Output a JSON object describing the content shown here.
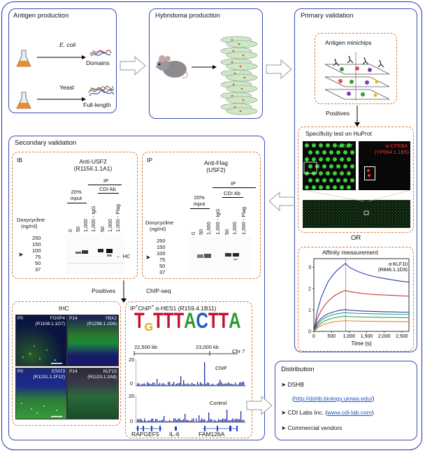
{
  "antigen": {
    "title": "Antigen production",
    "ecoli": "E. coli",
    "domains": "Domains",
    "yeast": "Yeast",
    "full_length": "Full-length"
  },
  "hybridoma": {
    "title": "Hybridoma production"
  },
  "primary": {
    "title": "Primary validation",
    "minichips": "Antigen minichips",
    "positives": "Positives",
    "specificity_title": "Specificity test on HuProt",
    "gst": "α-GST",
    "cpeb4_line1": "α-CPEB4",
    "cpeb4_line2": "(YP654.1.1B5)",
    "or": "OR"
  },
  "affinity": {
    "title": "Affinity measurement",
    "antibody_line1": "α-KLF10",
    "antibody_line2": "(R846.1.1D3)",
    "xlabel": "Time (s)"
  },
  "secondary": {
    "title": "Secondary validation",
    "ib": {
      "tag": "IB",
      "antibody": "Anti-USF2",
      "clone": "(R1156.1.1A1)",
      "ip": "IP",
      "input_line1": "20%",
      "input_line2": "input",
      "doxy_line1": "Doxycycline",
      "doxy_line2": "(ng/ml)",
      "lanes": [
        "0",
        "50",
        "1,000",
        "1,000 - IgG",
        "50",
        "1,000",
        "1,000 - Flag"
      ],
      "cdi": "CDI Ab",
      "markers": [
        "250",
        "150",
        "100",
        "75",
        "50",
        "37"
      ],
      "hc": "HC"
    },
    "ip": {
      "tag": "IP",
      "antibody": "Anti-Flag",
      "clone": "(USF2)",
      "ip": "IP",
      "input_line1": "20%",
      "input_line2": "input",
      "doxy_line1": "Doxycycline",
      "doxy_line2": "(ng/ml)",
      "lanes": [
        "0",
        "50",
        "1,000",
        "1,000 - IgG",
        "50",
        "1,000",
        "1,000 - Flag"
      ],
      "cdi": "CDI Ab",
      "markers": [
        "250",
        "150",
        "100",
        "75",
        "50",
        "37"
      ]
    },
    "positives": "Positives",
    "chipseq": "ChIP-seq"
  },
  "ihc": {
    "title": "IHC",
    "panels": [
      {
        "age": "P0",
        "gene": "FOXP4",
        "clone": "(R1108.1.1G7)"
      },
      {
        "age": "P14",
        "gene": "YBX2",
        "clone": "(R1298.1.1D6)"
      },
      {
        "age": "P0",
        "gene": "STAT3",
        "clone": "(R1231.1.2F12)"
      },
      {
        "age": "P14",
        "gene": "KLF15",
        "clone": "(R1123.1.2A8)"
      }
    ]
  },
  "chip": {
    "title": "IP",
    "sup1": "+",
    "title_mid": "ChIP",
    "sup2": "+",
    "title_end": " α-HES1 (R159.4.1B11)",
    "motif": [
      "T",
      "G",
      "T",
      "T",
      "T",
      "A",
      "C",
      "T",
      "T",
      "A"
    ],
    "coord_start": "22,500 kb",
    "coord_end": "23,000 kb",
    "chr": "Chr 7",
    "ymax1": "20",
    "ymin1": "0",
    "label1": "ChIP",
    "ymax2": "20",
    "ymin2": "0",
    "label2": "Control",
    "genes": [
      "RAPGEF5",
      "IL-6",
      "FAM126A"
    ]
  },
  "distribution": {
    "title": "Distribution",
    "item1": "DSHB",
    "item1_link": "http://dshb.biology.uiowa.edu/",
    "item2_prefix": "CDI Labs Inc. (",
    "item2_link": "www.cdi-lab.com",
    "item2_suffix": ")",
    "item3": "Commercial vendors"
  },
  "chart_data": {
    "type": "line",
    "title": "Affinity measurement",
    "xlabel": "Time (s)",
    "ylabel": "",
    "xlim": [
      0,
      2700
    ],
    "ylim": [
      0,
      3.4
    ],
    "xticks": [
      0,
      500,
      1000,
      1500,
      2000,
      2500
    ],
    "yticks": [
      0,
      1,
      2,
      3
    ],
    "series": [
      {
        "name": "blue",
        "color": "#2b3fb0",
        "x": [
          0,
          100,
          200,
          300,
          400,
          500,
          600,
          700,
          800,
          900,
          1000,
          1250,
          1500,
          1750,
          2000,
          2250,
          2500,
          2700
        ],
        "values": [
          0,
          0.95,
          1.55,
          1.95,
          2.3,
          2.55,
          2.75,
          2.92,
          3.05,
          3.18,
          3.0,
          2.8,
          2.65,
          2.55,
          2.47,
          2.4,
          2.34,
          2.3
        ]
      },
      {
        "name": "red",
        "color": "#c0392b",
        "x": [
          0,
          100,
          200,
          300,
          400,
          500,
          600,
          700,
          800,
          900,
          1000,
          1250,
          1500,
          1750,
          2000,
          2250,
          2500,
          2700
        ],
        "values": [
          0,
          0.6,
          0.95,
          1.2,
          1.4,
          1.55,
          1.68,
          1.78,
          1.85,
          1.92,
          1.86,
          1.8,
          1.75,
          1.72,
          1.7,
          1.68,
          1.66,
          1.65
        ]
      },
      {
        "name": "dark-blue",
        "color": "#2c3e8c",
        "x": [
          0,
          100,
          200,
          300,
          400,
          500,
          600,
          700,
          800,
          900,
          1000,
          1250,
          1500,
          1750,
          2000,
          2250,
          2500,
          2700
        ],
        "values": [
          0,
          0.4,
          0.6,
          0.73,
          0.82,
          0.88,
          0.93,
          0.97,
          1.0,
          1.02,
          0.99,
          0.96,
          0.94,
          0.93,
          0.92,
          0.91,
          0.9,
          0.9
        ]
      },
      {
        "name": "teal",
        "color": "#20a0a0",
        "x": [
          0,
          100,
          200,
          300,
          400,
          500,
          600,
          700,
          800,
          900,
          1000,
          1250,
          1500,
          1750,
          2000,
          2250,
          2500,
          2700
        ],
        "values": [
          0,
          0.3,
          0.5,
          0.62,
          0.7,
          0.76,
          0.8,
          0.83,
          0.86,
          0.88,
          0.86,
          0.84,
          0.83,
          0.82,
          0.81,
          0.8,
          0.8,
          0.79
        ]
      },
      {
        "name": "green",
        "color": "#3aa041",
        "x": [
          0,
          100,
          200,
          300,
          400,
          500,
          600,
          700,
          800,
          900,
          1000,
          1250,
          1500,
          1750,
          2000,
          2250,
          2500,
          2700
        ],
        "values": [
          0,
          0.22,
          0.38,
          0.48,
          0.55,
          0.6,
          0.64,
          0.67,
          0.69,
          0.71,
          0.69,
          0.68,
          0.67,
          0.66,
          0.65,
          0.65,
          0.64,
          0.64
        ]
      },
      {
        "name": "orange",
        "color": "#e08a2e",
        "x": [
          0,
          100,
          200,
          300,
          400,
          500,
          600,
          700,
          800,
          900,
          1000,
          1250,
          1500,
          1750,
          2000,
          2250,
          2500,
          2700
        ],
        "values": [
          0,
          0.15,
          0.26,
          0.33,
          0.38,
          0.42,
          0.45,
          0.47,
          0.49,
          0.5,
          0.49,
          0.48,
          0.47,
          0.47,
          0.46,
          0.46,
          0.45,
          0.45
        ]
      }
    ]
  }
}
